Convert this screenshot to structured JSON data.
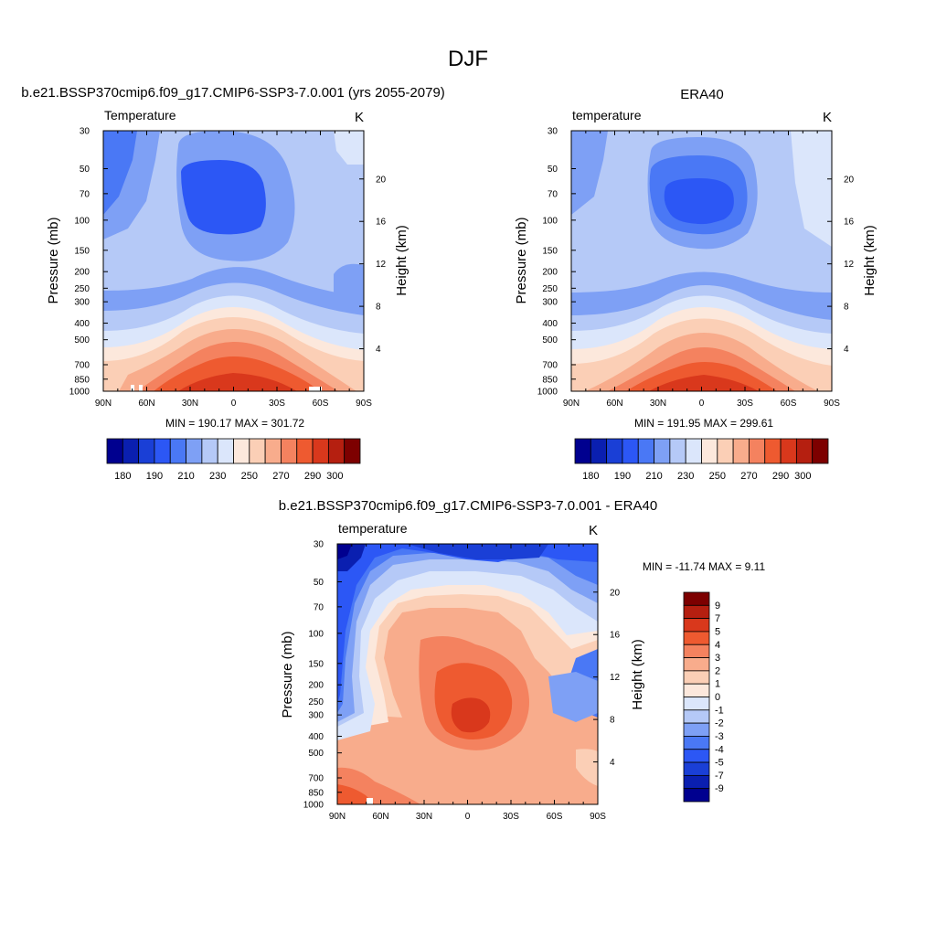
{
  "figure_title": "DJF",
  "colors": {
    "absolute_palette": [
      "#00008f",
      "#0a1fb0",
      "#1a3fd6",
      "#2c57f5",
      "#4a78f5",
      "#7ea0f5",
      "#b5c9f7",
      "#dbe6fb",
      "#fce8dc",
      "#fbcfb6",
      "#f8ac8c",
      "#f4825f",
      "#ee5a30",
      "#d9381c",
      "#b51f10",
      "#7d0000"
    ],
    "diff_palette": [
      "#00008f",
      "#0a1fb0",
      "#1a3fd6",
      "#2c57f5",
      "#4a78f5",
      "#7ea0f5",
      "#b5c9f7",
      "#dbe6fb",
      "#fce8dc",
      "#fbcfb6",
      "#f8ac8c",
      "#f4825f",
      "#ee5a30",
      "#d9381c",
      "#b51f10",
      "#7d0000"
    ]
  },
  "chart_data": [
    {
      "type": "heatmap",
      "title": "b.e21.BSSP370cmip6.f09_g17.CMIP6-SSP3-7.0.001 (yrs 2055-2079)",
      "variable_label": "Temperature",
      "units": "K",
      "ylabel": "Pressure (mb)",
      "ylabel_right": "Height (km)",
      "x_ticks": [
        "90N",
        "60N",
        "30N",
        "0",
        "30S",
        "60S",
        "90S"
      ],
      "y_ticks": [
        30,
        50,
        70,
        100,
        150,
        200,
        250,
        300,
        400,
        500,
        700,
        850,
        1000
      ],
      "y_ticks_right": [
        20,
        16,
        12,
        8,
        4
      ],
      "ylim": [
        1000,
        30
      ],
      "y_scale": "log",
      "stats": "MIN = 190.17  MAX = 301.72",
      "colorbar_labels": [
        180,
        190,
        210,
        230,
        250,
        270,
        290,
        300
      ],
      "colorbar_levels": [
        180,
        185,
        190,
        200,
        210,
        220,
        230,
        240,
        250,
        260,
        270,
        280,
        290,
        295,
        300
      ],
      "grid": false,
      "legend": "colorbar-below"
    },
    {
      "type": "heatmap",
      "title": "ERA40",
      "variable_label": "temperature",
      "units": "K",
      "ylabel": "Pressure (mb)",
      "ylabel_right": "Height (km)",
      "x_ticks": [
        "90N",
        "60N",
        "30N",
        "0",
        "30S",
        "60S",
        "90S"
      ],
      "y_ticks": [
        30,
        50,
        70,
        100,
        150,
        200,
        250,
        300,
        400,
        500,
        700,
        850,
        1000
      ],
      "y_ticks_right": [
        20,
        16,
        12,
        8,
        4
      ],
      "ylim": [
        1000,
        30
      ],
      "y_scale": "log",
      "stats": "MIN = 191.95  MAX = 299.61",
      "colorbar_labels": [
        180,
        190,
        210,
        230,
        250,
        270,
        290,
        300
      ],
      "colorbar_levels": [
        180,
        185,
        190,
        200,
        210,
        220,
        230,
        240,
        250,
        260,
        270,
        280,
        290,
        295,
        300
      ],
      "grid": false,
      "legend": "colorbar-below"
    },
    {
      "type": "heatmap",
      "title": "b.e21.BSSP370cmip6.f09_g17.CMIP6-SSP3-7.0.001 - ERA40",
      "variable_label": "temperature",
      "units": "K",
      "ylabel": "Pressure (mb)",
      "ylabel_right": "Height (km)",
      "x_ticks": [
        "90N",
        "60N",
        "30N",
        "0",
        "30S",
        "60S",
        "90S"
      ],
      "y_ticks": [
        30,
        50,
        70,
        100,
        150,
        200,
        250,
        300,
        400,
        500,
        700,
        850,
        1000
      ],
      "y_ticks_right": [
        20,
        16,
        12,
        8,
        4
      ],
      "ylim": [
        1000,
        30
      ],
      "y_scale": "log",
      "stats": "MIN = -11.74  MAX =   9.11",
      "colorbar_labels": [
        9,
        7,
        5,
        4,
        3,
        2,
        1,
        0,
        -1,
        -2,
        -3,
        -4,
        -5,
        -7,
        -9
      ],
      "grid": false,
      "legend": "colorbar-right"
    }
  ]
}
